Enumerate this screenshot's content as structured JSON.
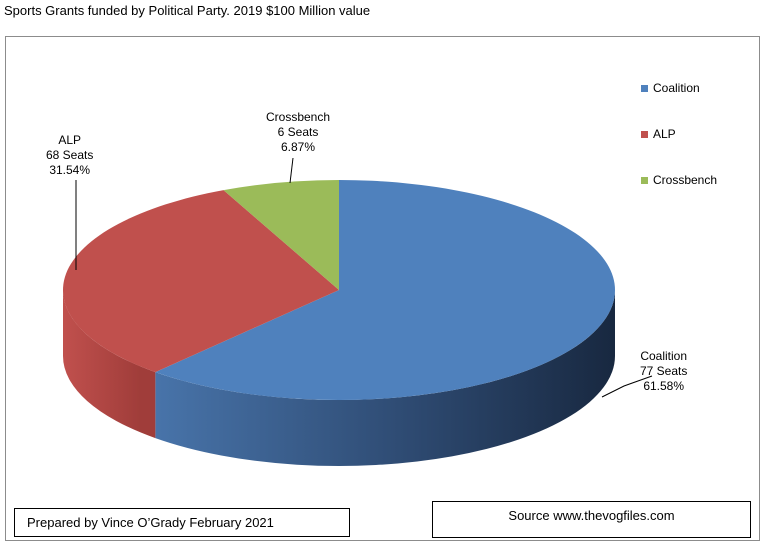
{
  "chart_title": "Sports Grants funded by Political Party. 2019 $100 Million value",
  "chart_data": {
    "type": "pie",
    "title": "Sports Grants funded by Political Party. 2019 $100 Million value",
    "style": "3d",
    "legend_position": "right",
    "series": [
      {
        "name": "Coalition",
        "seats_label": "77 Seats",
        "seats": 77,
        "percent_label": "61.58%",
        "value": 61.58,
        "color": "#4f81bd"
      },
      {
        "name": "ALP",
        "seats_label": "68 Seats",
        "seats": 68,
        "percent_label": "31.54%",
        "value": 31.54,
        "color": "#c0504d"
      },
      {
        "name": "Crossbench",
        "seats_label": "6 Seats",
        "seats": 6,
        "percent_label": "6.87%",
        "value": 6.87,
        "color": "#9bbb59"
      }
    ]
  },
  "footer": {
    "prepared_by": "Prepared by Vince O’Grady February 2021",
    "source": "Source www.thevogfiles.com"
  }
}
